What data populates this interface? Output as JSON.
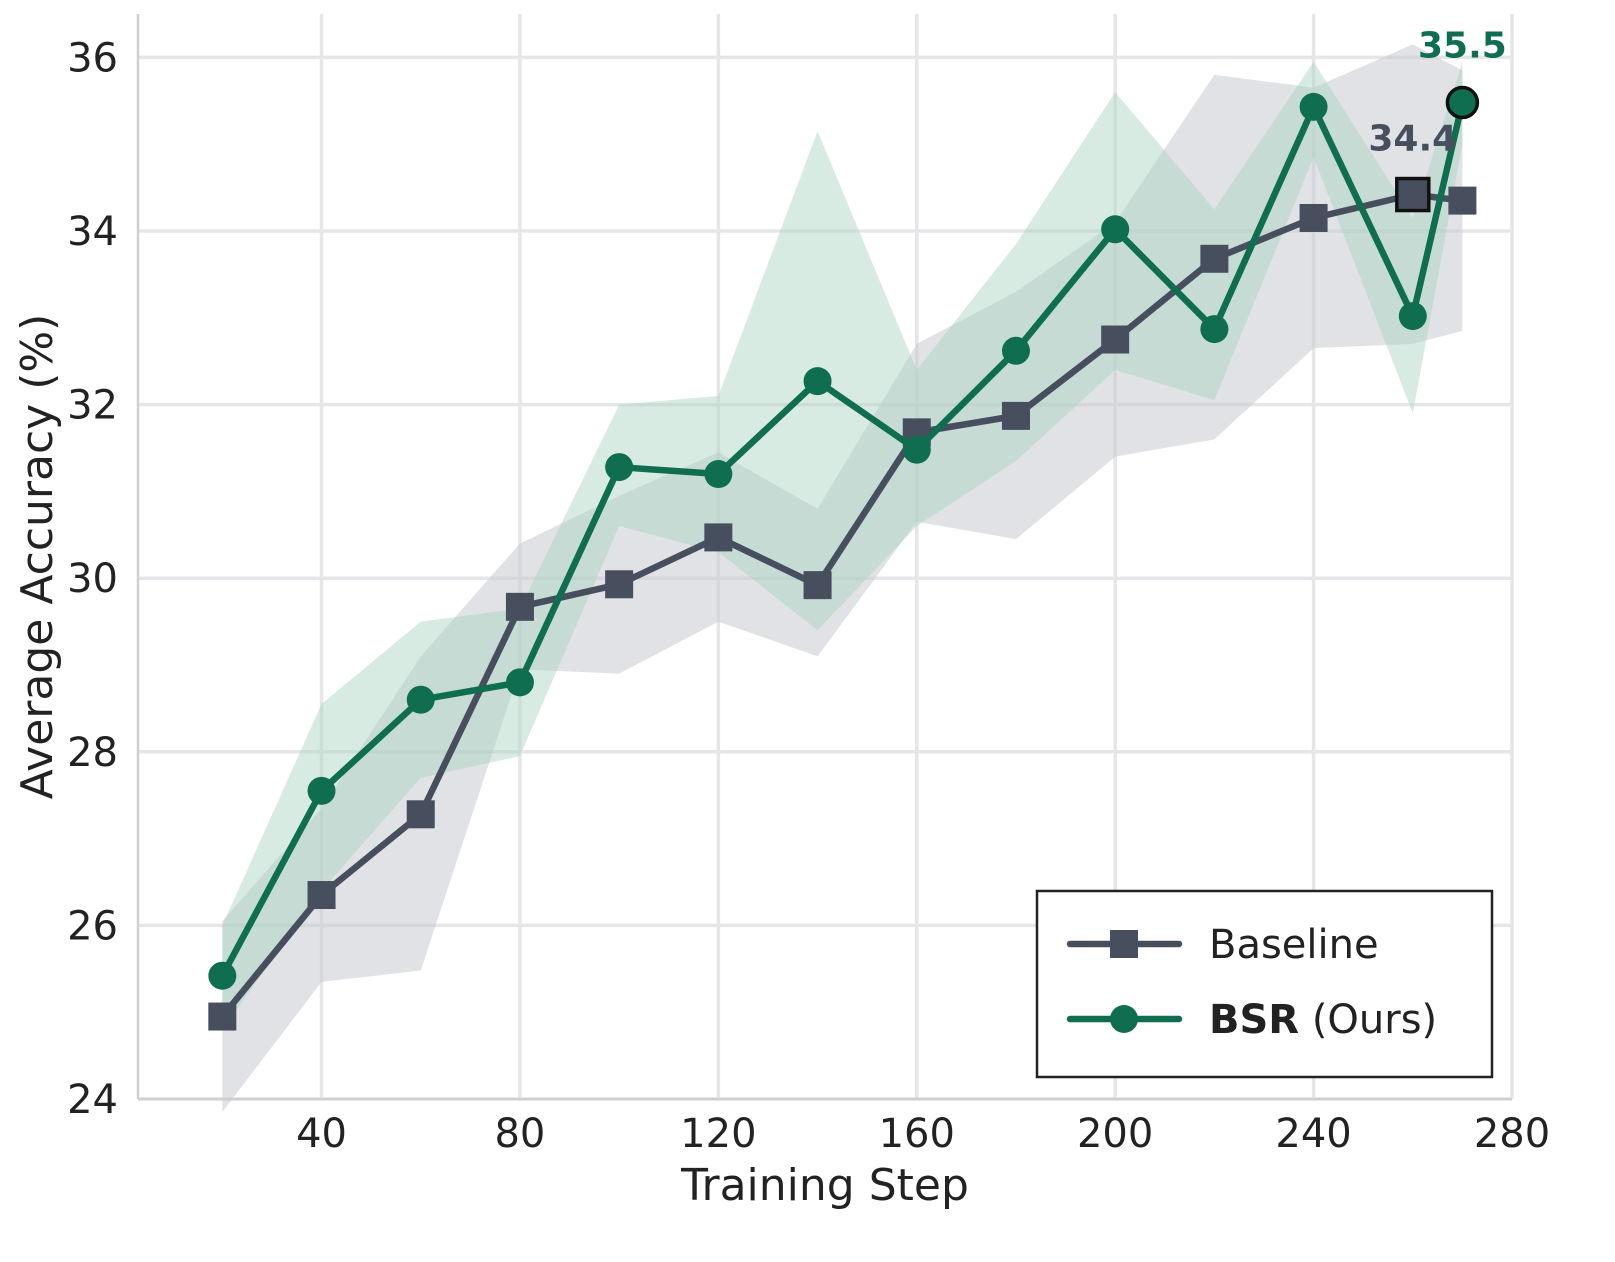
{
  "chart_data": {
    "type": "line",
    "xlabel": "Training Step",
    "ylabel": "Average Accuracy (%)",
    "xlim": [
      3,
      280
    ],
    "ylim": [
      24,
      36.5
    ],
    "xticks": [
      40,
      80,
      120,
      160,
      200,
      240,
      280
    ],
    "yticks": [
      24,
      26,
      28,
      30,
      32,
      34,
      36
    ],
    "grid": true,
    "legend_position": "lower-right",
    "x": [
      20,
      40,
      60,
      80,
      100,
      120,
      140,
      160,
      180,
      200,
      220,
      240,
      260,
      270
    ],
    "series": [
      {
        "name": "Baseline",
        "marker": "square",
        "color": "#474f5e",
        "band_color": "#c8cacf",
        "values": [
          24.95,
          26.35,
          27.28,
          29.67,
          29.93,
          30.47,
          29.92,
          31.68,
          31.87,
          32.75,
          33.68,
          34.15,
          34.42,
          34.35
        ],
        "lower": [
          23.85,
          25.35,
          25.48,
          28.95,
          28.9,
          29.5,
          29.1,
          30.65,
          30.45,
          31.4,
          31.6,
          32.65,
          32.7,
          32.85
        ],
        "upper": [
          26.05,
          27.35,
          29.1,
          30.4,
          30.95,
          31.45,
          30.8,
          32.7,
          33.3,
          34.1,
          35.8,
          35.65,
          36.15,
          35.85
        ]
      },
      {
        "name": "BSR (Ours)",
        "name_bold_part": "BSR",
        "name_rest": " (Ours)",
        "marker": "circle",
        "color": "#0f6e4f",
        "band_color": "#a9d2c1",
        "values": [
          25.42,
          27.55,
          28.6,
          28.8,
          31.28,
          31.2,
          32.27,
          31.48,
          32.62,
          34.02,
          32.87,
          35.43,
          33.02,
          35.48
        ],
        "lower": [
          24.8,
          26.4,
          27.7,
          27.95,
          30.6,
          30.3,
          29.4,
          30.6,
          31.35,
          32.4,
          32.05,
          34.85,
          31.9,
          35.0
        ],
        "upper": [
          26.0,
          28.55,
          29.5,
          29.65,
          32.0,
          32.1,
          35.15,
          32.4,
          33.85,
          35.6,
          34.25,
          35.95,
          34.15,
          35.95
        ]
      }
    ],
    "annotations": [
      {
        "text": "34.4",
        "series": "Baseline",
        "x": 260,
        "y": 34.42,
        "color": "#474f5e"
      },
      {
        "text": "35.5",
        "series": "BSR (Ours)",
        "x": 270,
        "y": 35.48,
        "color": "#0f6e4f"
      }
    ]
  }
}
